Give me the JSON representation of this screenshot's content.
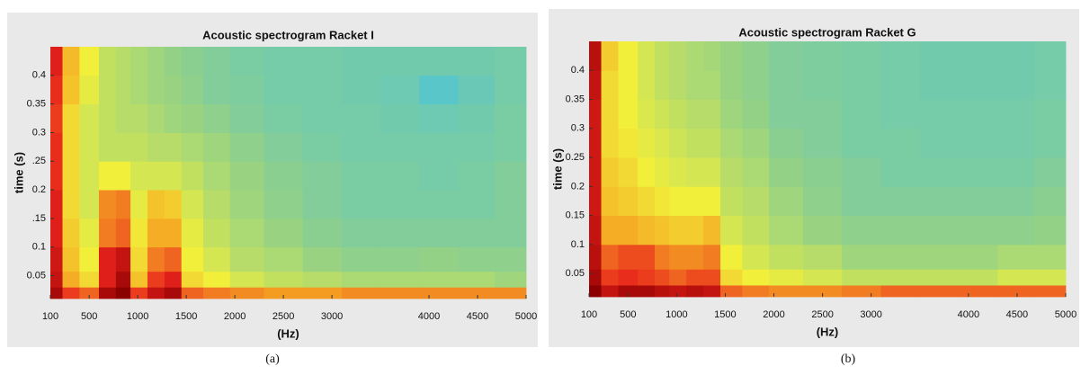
{
  "chart_data": [
    {
      "type": "heatmap",
      "title": "Acoustic spectrogram Racket I",
      "caption": "(a)",
      "x_label": "(Hz)",
      "y_label": "time (s)",
      "xlim": [
        100,
        5000
      ],
      "ylim": [
        0.01,
        0.45
      ],
      "zlim": [
        0,
        1
      ],
      "xticks": [
        100,
        500,
        1000,
        1500,
        2000,
        2500,
        3000,
        4000,
        4500,
        5000
      ],
      "yticks": [
        0.05,
        0.1,
        {
          "value": 0.15,
          "label": ".15"
        },
        0.2,
        {
          "value": 0.25,
          "label": ".25"
        },
        0.3,
        0.35,
        0.4
      ],
      "colormap": [
        "#2a7fd6",
        "#4cc3d9",
        "#8fd08a",
        "#f2ef3a",
        "#f5a623",
        "#e8221c",
        "#8b0000"
      ],
      "x": [
        150,
        300,
        500,
        700,
        850,
        1000,
        1200,
        1350,
        1550,
        1800,
        2100,
        2500,
        2900,
        3300,
        3700,
        4100,
        4500,
        4850
      ],
      "y": [
        0.02,
        0.04,
        0.075,
        0.125,
        0.175,
        0.225,
        0.275,
        0.325,
        0.375,
        0.425
      ],
      "z": [
        [
          0.95,
          0.8,
          0.75,
          0.95,
          1.0,
          0.8,
          0.9,
          0.95,
          0.75,
          0.72,
          0.7,
          0.68,
          0.68,
          0.7,
          0.7,
          0.7,
          0.7,
          0.7
        ],
        [
          0.9,
          0.65,
          0.55,
          0.85,
          0.95,
          0.6,
          0.8,
          0.85,
          0.55,
          0.5,
          0.45,
          0.42,
          0.4,
          0.38,
          0.38,
          0.38,
          0.38,
          0.36
        ],
        [
          0.88,
          0.6,
          0.5,
          0.85,
          0.9,
          0.55,
          0.72,
          0.75,
          0.5,
          0.45,
          0.4,
          0.38,
          0.35,
          0.33,
          0.33,
          0.34,
          0.33,
          0.33
        ],
        [
          0.85,
          0.58,
          0.48,
          0.72,
          0.75,
          0.52,
          0.65,
          0.65,
          0.48,
          0.42,
          0.38,
          0.35,
          0.32,
          0.3,
          0.3,
          0.3,
          0.3,
          0.3
        ],
        [
          0.85,
          0.55,
          0.45,
          0.7,
          0.72,
          0.48,
          0.6,
          0.58,
          0.45,
          0.4,
          0.36,
          0.33,
          0.3,
          0.28,
          0.28,
          0.28,
          0.28,
          0.3
        ],
        [
          0.82,
          0.55,
          0.45,
          0.5,
          0.5,
          0.45,
          0.45,
          0.45,
          0.42,
          0.38,
          0.35,
          0.32,
          0.3,
          0.28,
          0.28,
          0.27,
          0.28,
          0.3
        ],
        [
          0.82,
          0.55,
          0.45,
          0.42,
          0.42,
          0.42,
          0.4,
          0.4,
          0.38,
          0.36,
          0.33,
          0.3,
          0.28,
          0.27,
          0.27,
          0.27,
          0.27,
          0.28
        ],
        [
          0.8,
          0.55,
          0.45,
          0.42,
          0.4,
          0.4,
          0.38,
          0.36,
          0.35,
          0.33,
          0.3,
          0.28,
          0.27,
          0.27,
          0.26,
          0.25,
          0.26,
          0.28
        ],
        [
          0.82,
          0.6,
          0.48,
          0.42,
          0.4,
          0.38,
          0.36,
          0.35,
          0.33,
          0.3,
          0.29,
          0.27,
          0.27,
          0.26,
          0.25,
          0.2,
          0.24,
          0.27
        ],
        [
          0.85,
          0.62,
          0.5,
          0.42,
          0.4,
          0.38,
          0.36,
          0.34,
          0.32,
          0.3,
          0.28,
          0.27,
          0.27,
          0.26,
          0.26,
          0.26,
          0.26,
          0.27
        ]
      ]
    },
    {
      "type": "heatmap",
      "title": "Acoustic spectrogram Racket G",
      "caption": "(b)",
      "x_label": "(Hz)",
      "y_label": "time (s)",
      "xlim": [
        100,
        5000
      ],
      "ylim": [
        0.01,
        0.45
      ],
      "zlim": [
        0,
        1
      ],
      "xticks": [
        100,
        500,
        1000,
        1500,
        2000,
        2500,
        3000,
        4000,
        4500,
        5000
      ],
      "yticks": [
        0.05,
        0.1,
        0.15,
        0.2,
        0.25,
        0.3,
        0.35,
        0.4
      ],
      "colormap": [
        "#2a7fd6",
        "#4cc3d9",
        "#8fd08a",
        "#f2ef3a",
        "#f5a623",
        "#e8221c",
        "#8b0000"
      ],
      "x": [
        150,
        300,
        500,
        700,
        850,
        1000,
        1200,
        1350,
        1550,
        1800,
        2100,
        2500,
        2900,
        3300,
        3700,
        4100,
        4500,
        4850
      ],
      "y": [
        0.02,
        0.04,
        0.075,
        0.125,
        0.175,
        0.225,
        0.275,
        0.325,
        0.375,
        0.425
      ],
      "z": [
        [
          1.0,
          0.9,
          0.95,
          0.95,
          0.92,
          0.9,
          0.92,
          0.9,
          0.75,
          0.72,
          0.7,
          0.7,
          0.72,
          0.75,
          0.75,
          0.75,
          0.75,
          0.75
        ],
        [
          0.95,
          0.8,
          0.82,
          0.8,
          0.78,
          0.75,
          0.78,
          0.78,
          0.55,
          0.5,
          0.48,
          0.45,
          0.42,
          0.42,
          0.42,
          0.42,
          0.45,
          0.45
        ],
        [
          0.92,
          0.75,
          0.78,
          0.78,
          0.72,
          0.7,
          0.7,
          0.72,
          0.5,
          0.45,
          0.42,
          0.4,
          0.36,
          0.36,
          0.36,
          0.36,
          0.38,
          0.38
        ],
        [
          0.9,
          0.65,
          0.65,
          0.62,
          0.6,
          0.58,
          0.58,
          0.62,
          0.45,
          0.42,
          0.38,
          0.35,
          0.33,
          0.33,
          0.33,
          0.33,
          0.33,
          0.34
        ],
        [
          0.88,
          0.6,
          0.58,
          0.55,
          0.52,
          0.5,
          0.5,
          0.5,
          0.42,
          0.4,
          0.36,
          0.33,
          0.3,
          0.3,
          0.3,
          0.3,
          0.3,
          0.32
        ],
        [
          0.88,
          0.58,
          0.55,
          0.5,
          0.48,
          0.46,
          0.45,
          0.45,
          0.4,
          0.38,
          0.34,
          0.32,
          0.3,
          0.28,
          0.28,
          0.28,
          0.28,
          0.3
        ],
        [
          0.88,
          0.55,
          0.52,
          0.48,
          0.46,
          0.44,
          0.42,
          0.42,
          0.38,
          0.36,
          0.32,
          0.3,
          0.28,
          0.28,
          0.27,
          0.27,
          0.27,
          0.28
        ],
        [
          0.88,
          0.55,
          0.5,
          0.46,
          0.44,
          0.42,
          0.4,
          0.4,
          0.36,
          0.34,
          0.3,
          0.3,
          0.28,
          0.27,
          0.27,
          0.27,
          0.27,
          0.28
        ],
        [
          0.9,
          0.55,
          0.5,
          0.45,
          0.42,
          0.4,
          0.38,
          0.38,
          0.35,
          0.33,
          0.3,
          0.29,
          0.28,
          0.27,
          0.26,
          0.26,
          0.26,
          0.27
        ],
        [
          0.92,
          0.58,
          0.5,
          0.45,
          0.42,
          0.4,
          0.38,
          0.37,
          0.35,
          0.33,
          0.3,
          0.29,
          0.28,
          0.27,
          0.26,
          0.26,
          0.26,
          0.27
        ]
      ]
    }
  ]
}
